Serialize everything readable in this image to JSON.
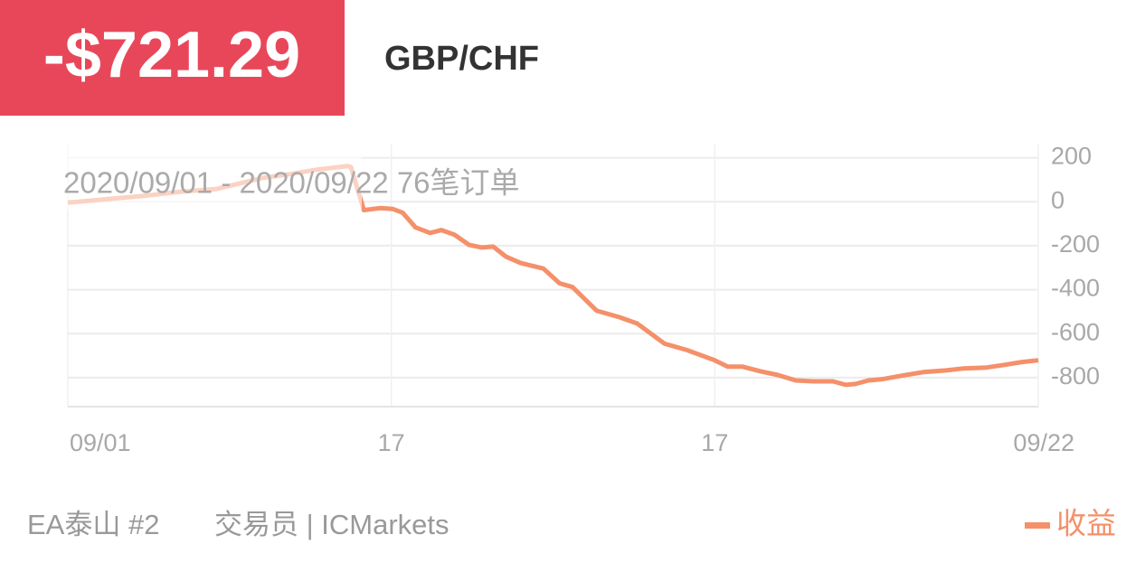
{
  "header": {
    "amount": "-$721.29",
    "symbol": "GBP/CHF"
  },
  "chart_data": {
    "type": "line",
    "subtitle": "2020/09/01 - 2020/09/22  76笔订单",
    "x": [
      0,
      2.5,
      5,
      7,
      9.2,
      10.9,
      12,
      13.7,
      15.4,
      17.3,
      17.5,
      18.3,
      19.3,
      20.1,
      20.7,
      21.5,
      22.4,
      23.1,
      23.9,
      24.8,
      25.6,
      26.3,
      27.1,
      28,
      29.4,
      30.4,
      31.2,
      32.7,
      34.1,
      35.2,
      36.9,
      38.3,
      40,
      40.8,
      41.7,
      42.8,
      43.9,
      45,
      46.1,
      47.3,
      48.1,
      48.7,
      49.5,
      50.3,
      51.5,
      52.9,
      54.3,
      55.4,
      56.8,
      57.9,
      59,
      60
    ],
    "series": [
      {
        "name": "收益",
        "color": "#f4906a",
        "values": [
          -4,
          12,
          29,
          46,
          58,
          88,
          108,
          125,
          146,
          162,
          158,
          -38,
          -29,
          -33,
          -50,
          -117,
          -142,
          -129,
          -150,
          -196,
          -208,
          -204,
          -250,
          -279,
          -304,
          -371,
          -388,
          -496,
          -525,
          -554,
          -646,
          -675,
          -721,
          -750,
          -750,
          -771,
          -788,
          -813,
          -817,
          -817,
          -833,
          -829,
          -813,
          -808,
          -792,
          -775,
          -767,
          -758,
          -754,
          -742,
          -729,
          -721.29
        ]
      }
    ],
    "xlim": [
      0,
      60
    ],
    "xticks": [
      {
        "value": 0,
        "label": "09/01"
      },
      {
        "value": 20,
        "label": "17"
      },
      {
        "value": 40,
        "label": "17"
      },
      {
        "value": 60,
        "label": "09/22"
      }
    ],
    "ylim": [
      -932,
      260
    ],
    "yticks": [
      200,
      0,
      -200,
      -400,
      -600,
      -800
    ],
    "grid": true
  },
  "footer": {
    "account": "EA泰山 #2",
    "trader": "交易员 | ICMarkets"
  }
}
